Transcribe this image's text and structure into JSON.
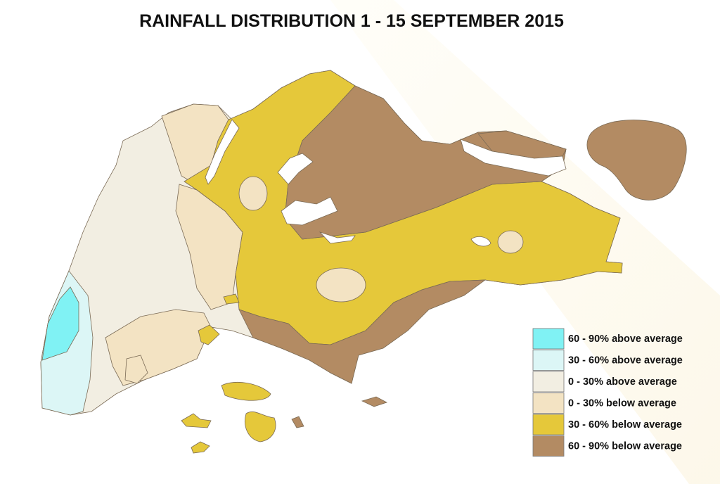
{
  "title": "RAINFALL DISTRIBUTION  1 - 15 SEPTEMBER 2015",
  "legend": [
    {
      "label": "60 - 90% above average",
      "color": "#80f2f4"
    },
    {
      "label": "30 - 60% above average",
      "color": "#dcf6f6"
    },
    {
      "label": "0 - 30% above average",
      "color": "#f2eee2"
    },
    {
      "label": "0 - 30% below average",
      "color": "#f3e3c3"
    },
    {
      "label": "30 - 60% below average",
      "color": "#e5c83a"
    },
    {
      "label": "60 - 90% below average",
      "color": "#b38b63"
    }
  ]
}
